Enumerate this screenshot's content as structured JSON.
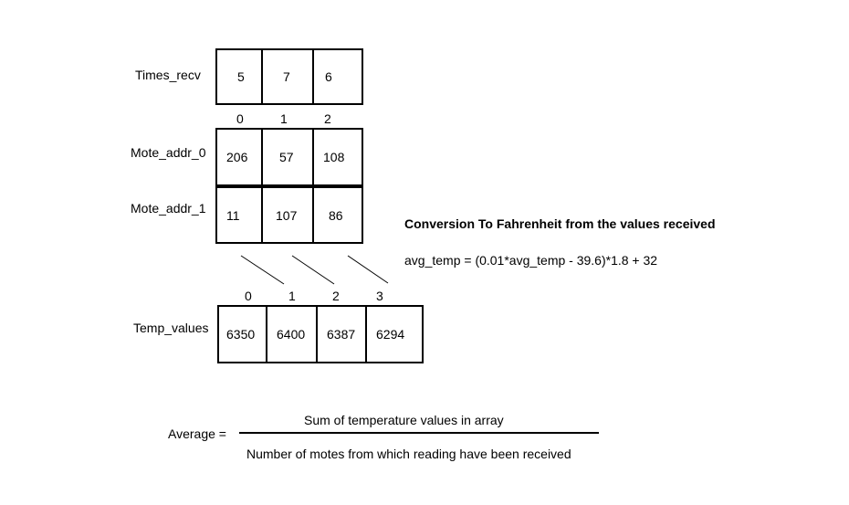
{
  "times_recv": {
    "label": "Times_recv",
    "values": [
      "5",
      "7",
      "6"
    ]
  },
  "mote_addr_indices": [
    "0",
    "1",
    "2"
  ],
  "mote_addr_0": {
    "label": "Mote_addr_0",
    "values": [
      "206",
      "57",
      "108"
    ]
  },
  "mote_addr_1": {
    "label": "Mote_addr_1",
    "values": [
      "11",
      "107",
      "86"
    ]
  },
  "temp_indices": [
    "0",
    "1",
    "2",
    "3"
  ],
  "temp_values": {
    "label": "Temp_values",
    "values": [
      "6350",
      "6400",
      "6387",
      "6294"
    ]
  },
  "conversion": {
    "title": "Conversion To Fahrenheit from the values received",
    "formula": "avg_temp = (0.01*avg_temp - 39.6)*1.8 + 32"
  },
  "average": {
    "label": "Average =",
    "numerator": "Sum of temperature values in array",
    "denominator": "Number of motes from which reading have been received"
  }
}
